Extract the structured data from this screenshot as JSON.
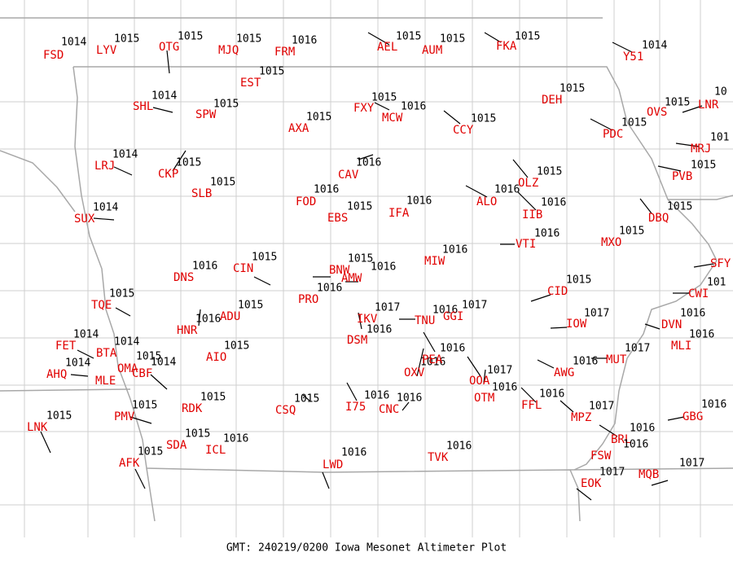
{
  "footer": "GMT: 240219/0200 Iowa Mesonet Altimeter Plot",
  "stations": [
    {
      "id": "FSD",
      "value": 1014
    },
    {
      "id": "LYV",
      "value": 1015
    },
    {
      "id": "OTG",
      "value": 1015
    },
    {
      "id": "MJQ",
      "value": 1015
    },
    {
      "id": "FRM",
      "value": 1016
    },
    {
      "id": "AEL",
      "value": 1015
    },
    {
      "id": "AUM",
      "value": 1015
    },
    {
      "id": "FKA",
      "value": 1015
    },
    {
      "id": "Y51",
      "value": 1014
    },
    {
      "id": "EST",
      "value": 1015
    },
    {
      "id": "SHL",
      "value": 1014
    },
    {
      "id": "SPW",
      "value": 1015
    },
    {
      "id": "FXY",
      "value": 1015
    },
    {
      "id": "MCW",
      "value": 1016
    },
    {
      "id": "CCY",
      "value": 1015
    },
    {
      "id": "DEH",
      "value": 1015
    },
    {
      "id": "AXA",
      "value": 1015
    },
    {
      "id": "OVS",
      "value": 1015
    },
    {
      "id": "LNR",
      "value": "10"
    },
    {
      "id": "PDC",
      "value": 1015
    },
    {
      "id": "MRJ",
      "value": "101"
    },
    {
      "id": "LRJ",
      "value": 1014
    },
    {
      "id": "CKP",
      "value": 1015
    },
    {
      "id": "SLB",
      "value": 1015
    },
    {
      "id": "CAV",
      "value": 1016
    },
    {
      "id": "PVB",
      "value": 1015
    },
    {
      "id": "OLZ",
      "value": 1015
    },
    {
      "id": "FOD",
      "value": 1016
    },
    {
      "id": "EBS",
      "value": 1015
    },
    {
      "id": "IFA",
      "value": 1016
    },
    {
      "id": "ALO",
      "value": 1016
    },
    {
      "id": "IIB",
      "value": 1016
    },
    {
      "id": "DBQ",
      "value": 1015
    },
    {
      "id": "SUX",
      "value": 1014
    },
    {
      "id": "VTI",
      "value": 1016
    },
    {
      "id": "MXO",
      "value": 1015
    },
    {
      "id": "SFY"
    },
    {
      "id": "MIW",
      "value": 1016
    },
    {
      "id": "DNS",
      "value": 1016
    },
    {
      "id": "CIN",
      "value": 1015
    },
    {
      "id": "BNW",
      "value": 1015
    },
    {
      "id": "AMW",
      "value": 1016
    },
    {
      "id": "PRO",
      "value": 1016
    },
    {
      "id": "CWI",
      "value": "101"
    },
    {
      "id": "CID",
      "value": 1015
    },
    {
      "id": "TQE",
      "value": 1015
    },
    {
      "id": "IKV",
      "value": 1017
    },
    {
      "id": "TNU",
      "value": 1016
    },
    {
      "id": "GGI",
      "value": 1017
    },
    {
      "id": "HNR",
      "value": 1016
    },
    {
      "id": "ADU",
      "value": 1015
    },
    {
      "id": "DSM",
      "value": 1016
    },
    {
      "id": "IOW",
      "value": 1017
    },
    {
      "id": "DVN",
      "value": 1016
    },
    {
      "id": "FET",
      "value": 1014
    },
    {
      "id": "BTA",
      "value": 1014
    },
    {
      "id": "AIO",
      "value": 1015
    },
    {
      "id": "MLI",
      "value": 1016
    },
    {
      "id": "AHQ",
      "value": 1014
    },
    {
      "id": "MLE"
    },
    {
      "id": "OMA",
      "value": 1015
    },
    {
      "id": "CBF",
      "value": 1014
    },
    {
      "id": "OXV",
      "value": 1016
    },
    {
      "id": "PEA",
      "value": 1016
    },
    {
      "id": "OOA",
      "value": 1017
    },
    {
      "id": "MUT",
      "value": 1017
    },
    {
      "id": "AWG",
      "value": 1016
    },
    {
      "id": "OTM",
      "value": 1016
    },
    {
      "id": "FFL",
      "value": 1016
    },
    {
      "id": "RDK",
      "value": 1015
    },
    {
      "id": "CSQ",
      "value": 1015
    },
    {
      "id": "I75",
      "value": 1016
    },
    {
      "id": "CNC",
      "value": 1016
    },
    {
      "id": "MPZ",
      "value": 1017
    },
    {
      "id": "GBG",
      "value": 1016
    },
    {
      "id": "PMV",
      "value": 1015
    },
    {
      "id": "LNK",
      "value": 1015
    },
    {
      "id": "SDA",
      "value": 1015
    },
    {
      "id": "ICL",
      "value": 1016
    },
    {
      "id": "BRL",
      "value": 1016
    },
    {
      "id": "FSW",
      "value": 1016
    },
    {
      "id": "LWD",
      "value": 1016
    },
    {
      "id": "TVK",
      "value": 1016
    },
    {
      "id": "AFK",
      "value": 1015
    },
    {
      "id": "EOK",
      "value": 1017
    },
    {
      "id": "MQB",
      "value": 1017
    }
  ]
}
